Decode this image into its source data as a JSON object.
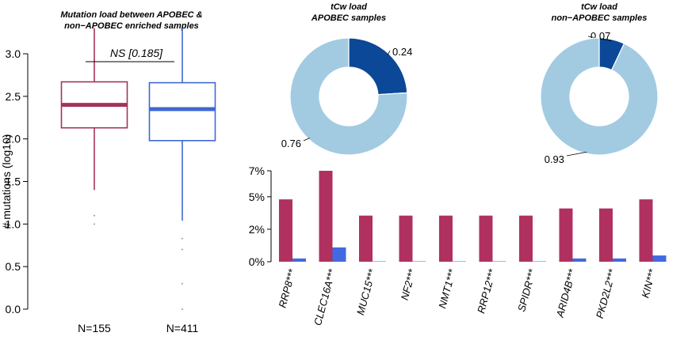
{
  "chart_data": [
    {
      "type": "boxplot",
      "title_lines": [
        "Mutation load between APOBEC &",
        "non−APOBEC enriched samples"
      ],
      "ylabel": "# mutations (log10)",
      "ylim": [
        0,
        3.2
      ],
      "yticks": [
        "0.0",
        "0.5",
        "1.0",
        "1.5",
        "2.0",
        "2.5",
        "3.0"
      ],
      "annotation": "NS [0.185]",
      "groups": [
        {
          "label": "N=155",
          "color": "#a5325c",
          "min": 1.4,
          "q1": 2.13,
          "median": 2.4,
          "q3": 2.67,
          "max": 3.3,
          "outliers": [
            1.1,
            1.0
          ]
        },
        {
          "label": "N=411",
          "color": "#3e68d3",
          "min": 1.04,
          "q1": 1.98,
          "median": 2.35,
          "q3": 2.66,
          "max": 3.3,
          "outliers": [
            0.83,
            0.7,
            0.3,
            0.0
          ]
        }
      ]
    },
    {
      "type": "pie",
      "title_lines": [
        "tCw load",
        "APOBEC samples"
      ],
      "slices": [
        {
          "label": "0.24",
          "value": 0.24,
          "color": "#0b4897"
        },
        {
          "label": "0.76",
          "value": 0.76,
          "color": "#a2cbe2"
        }
      ]
    },
    {
      "type": "pie",
      "title_lines": [
        "tCw load",
        "non−APOBEC samples"
      ],
      "slices": [
        {
          "label": "0.07",
          "value": 0.07,
          "color": "#0b4897"
        },
        {
          "label": "0.93",
          "value": 0.93,
          "color": "#a2cbe2"
        }
      ]
    },
    {
      "type": "bar",
      "ylim": [
        0,
        7
      ],
      "yticks": [
        {
          "value": 0,
          "label": "0%"
        },
        {
          "value": 2.5,
          "label": "2%"
        },
        {
          "value": 5,
          "label": "5%"
        },
        {
          "value": 7,
          "label": "7%"
        }
      ],
      "categories": [
        "RRP8***",
        "CLEC16A***",
        "MUC15***",
        "NF2***",
        "NMT1***",
        "RRP12***",
        "SPIDR***",
        "ARID4B***",
        "PKD2L2***",
        "KIN***"
      ],
      "series": [
        {
          "color": "#b03060",
          "values": [
            4.8,
            7.0,
            3.55,
            3.55,
            3.55,
            3.55,
            3.55,
            4.1,
            4.1,
            4.8
          ]
        },
        {
          "color": "#4169e1",
          "values": [
            0.25,
            1.1,
            0.0,
            0.0,
            0.0,
            0.0,
            0.0,
            0.25,
            0.25,
            0.48
          ]
        }
      ]
    }
  ]
}
